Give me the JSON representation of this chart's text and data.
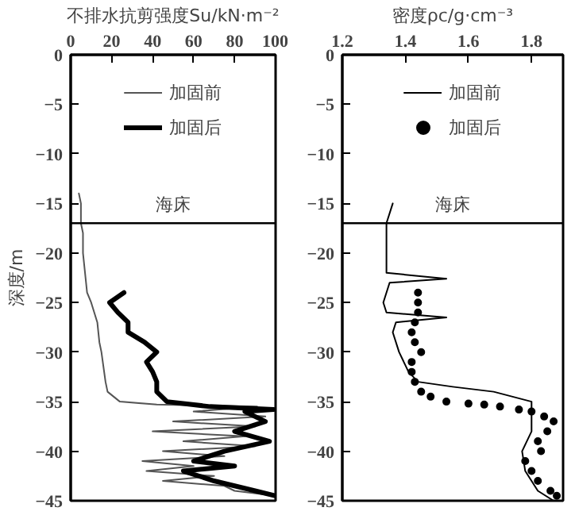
{
  "chart_data": [
    {
      "type": "line",
      "xlabel": "不排水抗剪强度Su/kN·m⁻²",
      "ylabel": "深度/m",
      "xlim": [
        0,
        100
      ],
      "xticks": [
        0,
        20,
        40,
        60,
        80,
        100
      ],
      "ylim": [
        -45,
        0
      ],
      "yticks": [
        0,
        -5,
        -10,
        -15,
        -20,
        -25,
        -30,
        -35,
        -40,
        -45
      ],
      "legend": "top",
      "grid": false,
      "ref_lines": [
        {
          "axis": "y",
          "value": -17,
          "label": "海床",
          "color": "#000000"
        }
      ],
      "series": [
        {
          "name": "加固前",
          "color": "#555555",
          "x": [
            4,
            5,
            5,
            6,
            6,
            7,
            8,
            10,
            13,
            14,
            15,
            17,
            18,
            24,
            42,
            91,
            60,
            95,
            50,
            90,
            40,
            85,
            55,
            90,
            45,
            75,
            35,
            60,
            37,
            70,
            45,
            75,
            80,
            100
          ],
          "values": [
            -14,
            -15,
            -17,
            -18,
            -20,
            -22,
            -24,
            -25,
            -27,
            -29,
            -30,
            -33,
            -34,
            -35,
            -35.3,
            -35.5,
            -36,
            -36.5,
            -37,
            -37.5,
            -38,
            -38.5,
            -39,
            -39.5,
            -40,
            -40.5,
            -41,
            -41.5,
            -42,
            -42.5,
            -43,
            -43.5,
            -44,
            -44.5
          ]
        },
        {
          "name": "加固后",
          "color": "#000000",
          "x": [
            26,
            19,
            23,
            28,
            28,
            36,
            42,
            37,
            40,
            42,
            42,
            47,
            68,
            99,
            85,
            95,
            80,
            97,
            75,
            60,
            80,
            55,
            70,
            80,
            90,
            100
          ],
          "values": [
            -24,
            -25,
            -26,
            -27,
            -28,
            -29,
            -30,
            -31,
            -32,
            -33,
            -34,
            -35,
            -35.5,
            -35.8,
            -36,
            -37,
            -38,
            -39,
            -40,
            -41,
            -41.5,
            -42,
            -43,
            -43.5,
            -44,
            -44.5
          ]
        }
      ]
    },
    {
      "type": "line",
      "xlabel": "密度ρc/g·cm⁻³",
      "xlim": [
        1.2,
        1.9
      ],
      "xticks": [
        1.2,
        1.4,
        1.6,
        1.8
      ],
      "ylim": [
        -45,
        0
      ],
      "yticks": [
        0,
        -5,
        -10,
        -15,
        -20,
        -25,
        -30,
        -35,
        -40,
        -45
      ],
      "legend": "top",
      "grid": false,
      "ref_lines": [
        {
          "axis": "y",
          "value": -17,
          "label": "海床",
          "color": "#000000"
        }
      ],
      "series": [
        {
          "name": "加固前",
          "color": "#000000",
          "x": [
            1.36,
            1.34,
            1.34,
            1.34,
            1.53,
            1.35,
            1.33,
            1.34,
            1.53,
            1.37,
            1.36,
            1.38,
            1.41,
            1.44,
            1.55,
            1.68,
            1.8,
            1.8,
            1.8,
            1.77,
            1.78,
            1.82,
            1.87
          ],
          "values": [
            -15,
            -17,
            -20,
            -22,
            -22.6,
            -23,
            -25,
            -26,
            -26.5,
            -27,
            -28,
            -30,
            -32,
            -33,
            -33.5,
            -34,
            -35,
            -36,
            -38,
            -40,
            -42,
            -44,
            -45
          ]
        },
        {
          "name": "加固后",
          "type": "scatter",
          "marker": "circle",
          "color": "#000000",
          "x": [
            1.44,
            1.44,
            1.44,
            1.43,
            1.42,
            1.43,
            1.45,
            1.42,
            1.42,
            1.43,
            1.45,
            1.48,
            1.53,
            1.6,
            1.65,
            1.7,
            1.76,
            1.8,
            1.84,
            1.87,
            1.85,
            1.82,
            1.83,
            1.78,
            1.8,
            1.82,
            1.86,
            1.88
          ],
          "values": [
            -24,
            -25,
            -26,
            -27,
            -28,
            -29,
            -30,
            -31,
            -32,
            -33,
            -34,
            -34.5,
            -35,
            -35.2,
            -35.3,
            -35.5,
            -35.8,
            -36,
            -36.5,
            -37,
            -38,
            -39,
            -40,
            -41,
            -42,
            -43,
            -44,
            -44.5
          ]
        }
      ]
    }
  ]
}
